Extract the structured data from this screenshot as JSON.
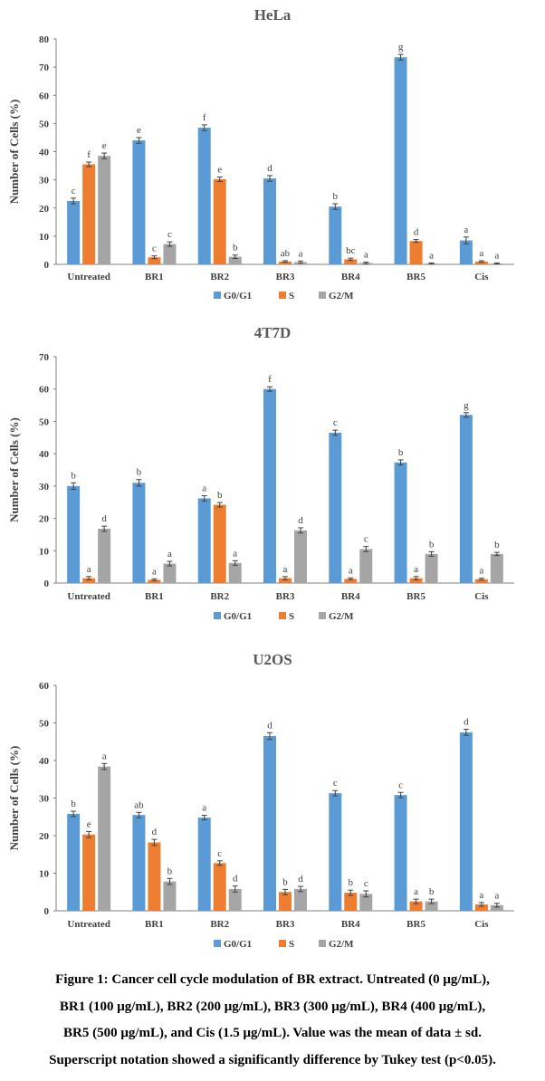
{
  "colors": {
    "G0/G1": "#5b9bd5",
    "S": "#ed7d31",
    "G2/M": "#a5a5a5"
  },
  "chart_data": [
    {
      "type": "bar",
      "title": "HeLa",
      "ylabel": "Number of Cells (%)",
      "xlabel": "",
      "ylim": [
        0,
        80
      ],
      "yticks": [
        0,
        10,
        20,
        30,
        40,
        50,
        60,
        70,
        80
      ],
      "categories": [
        "Untreated",
        "BR1",
        "BR2",
        "BR3",
        "BR4",
        "BR5",
        "Cis"
      ],
      "legend_position": "bottom",
      "series": [
        {
          "name": "G0/G1",
          "values": [
            22.5,
            44,
            48.5,
            30.5,
            20.5,
            73.5,
            8.5
          ],
          "errors": [
            1.0,
            1.0,
            1.0,
            1.0,
            1.0,
            1.0,
            1.2
          ],
          "labels": [
            "c",
            "e",
            "f",
            "d",
            "b",
            "g",
            "a"
          ]
        },
        {
          "name": "S",
          "values": [
            35.5,
            2.5,
            30.2,
            1.0,
            1.8,
            8.3,
            1.0
          ],
          "errors": [
            0.8,
            0.5,
            0.8,
            0.3,
            0.4,
            0.5,
            0.3
          ],
          "labels": [
            "f",
            "c",
            "e",
            "ab",
            "bc",
            "d",
            "a"
          ]
        },
        {
          "name": "G2/M",
          "values": [
            38.5,
            7.2,
            2.7,
            0.8,
            0.5,
            0.3,
            0.3
          ],
          "errors": [
            1.0,
            0.8,
            0.6,
            0.4,
            0.3,
            0.2,
            0.2
          ],
          "labels": [
            "e",
            "c",
            "b",
            "a",
            "a",
            "a",
            "a"
          ]
        }
      ]
    },
    {
      "type": "bar",
      "title": "4T7D",
      "ylabel": "Number of Cells (%)",
      "xlabel": "",
      "ylim": [
        0,
        70
      ],
      "yticks": [
        0,
        10,
        20,
        30,
        40,
        50,
        60,
        70
      ],
      "categories": [
        "Untreated",
        "BR1",
        "BR2",
        "BR3",
        "BR4",
        "BR5",
        "Cis"
      ],
      "legend_position": "bottom",
      "series": [
        {
          "name": "G0/G1",
          "values": [
            30,
            31,
            26.2,
            60,
            46.5,
            37.3,
            52
          ],
          "errors": [
            1.0,
            1.0,
            0.8,
            0.7,
            0.8,
            0.8,
            0.7
          ],
          "labels": [
            "b",
            "b",
            "a",
            "f",
            "c",
            "b",
            "g"
          ]
        },
        {
          "name": "S",
          "values": [
            1.5,
            1.0,
            24.2,
            1.5,
            1.3,
            1.5,
            1.2
          ],
          "errors": [
            0.5,
            0.3,
            0.7,
            0.5,
            0.3,
            0.5,
            0.3
          ],
          "labels": [
            "a",
            "a",
            "b",
            "a",
            "a",
            "a",
            "a"
          ]
        },
        {
          "name": "G2/M",
          "values": [
            16.8,
            6.0,
            6.2,
            16.3,
            10.5,
            9.0,
            9.0
          ],
          "errors": [
            0.8,
            0.7,
            0.7,
            0.8,
            0.8,
            0.7,
            0.5
          ],
          "labels": [
            "d",
            "a",
            "a",
            "d",
            "c",
            "b",
            "b"
          ]
        }
      ]
    },
    {
      "type": "bar",
      "title": "U2OS",
      "ylabel": "Number of Cells (%)",
      "xlabel": "",
      "ylim": [
        0,
        60
      ],
      "yticks": [
        0,
        10,
        20,
        30,
        40,
        50,
        60
      ],
      "categories": [
        "Untreated",
        "BR1",
        "BR2",
        "BR3",
        "BR4",
        "BR5",
        "Cis"
      ],
      "legend_position": "bottom",
      "series": [
        {
          "name": "G0/G1",
          "values": [
            25.8,
            25.5,
            24.8,
            46.5,
            31.3,
            30.8,
            47.5
          ],
          "errors": [
            0.7,
            0.7,
            0.6,
            0.9,
            0.7,
            0.7,
            0.8
          ],
          "labels": [
            "b",
            "ab",
            "a",
            "d",
            "c",
            "c",
            "d"
          ]
        },
        {
          "name": "S",
          "values": [
            20.3,
            18.2,
            12.7,
            5.0,
            4.8,
            2.5,
            1.7
          ],
          "errors": [
            0.8,
            0.8,
            0.6,
            0.7,
            0.7,
            0.6,
            0.5
          ],
          "labels": [
            "e",
            "d",
            "c",
            "b",
            "b",
            "a",
            "a"
          ]
        },
        {
          "name": "G2/M",
          "values": [
            38.4,
            7.8,
            5.8,
            5.8,
            4.5,
            2.5,
            1.5
          ],
          "errors": [
            0.8,
            0.8,
            0.8,
            0.7,
            0.8,
            0.6,
            0.5
          ],
          "labels": [
            "a",
            "b",
            "d",
            "d",
            "c",
            "b",
            "a"
          ]
        }
      ]
    }
  ],
  "caption": {
    "line1": "Figure 1: Cancer cell cycle modulation of BR extract. Untreated (0 μg/mL),",
    "line2": "BR1 (100 μg/mL), BR2 (200 μg/mL), BR3 (300 μg/mL), BR4 (400 μg/mL),",
    "line3": "BR5 (500 μg/mL), and Cis (1.5 μg/mL). Value was the mean of data ± sd.",
    "line4": "Superscript notation showed a significantly difference by Tukey test (p<0.05)."
  }
}
